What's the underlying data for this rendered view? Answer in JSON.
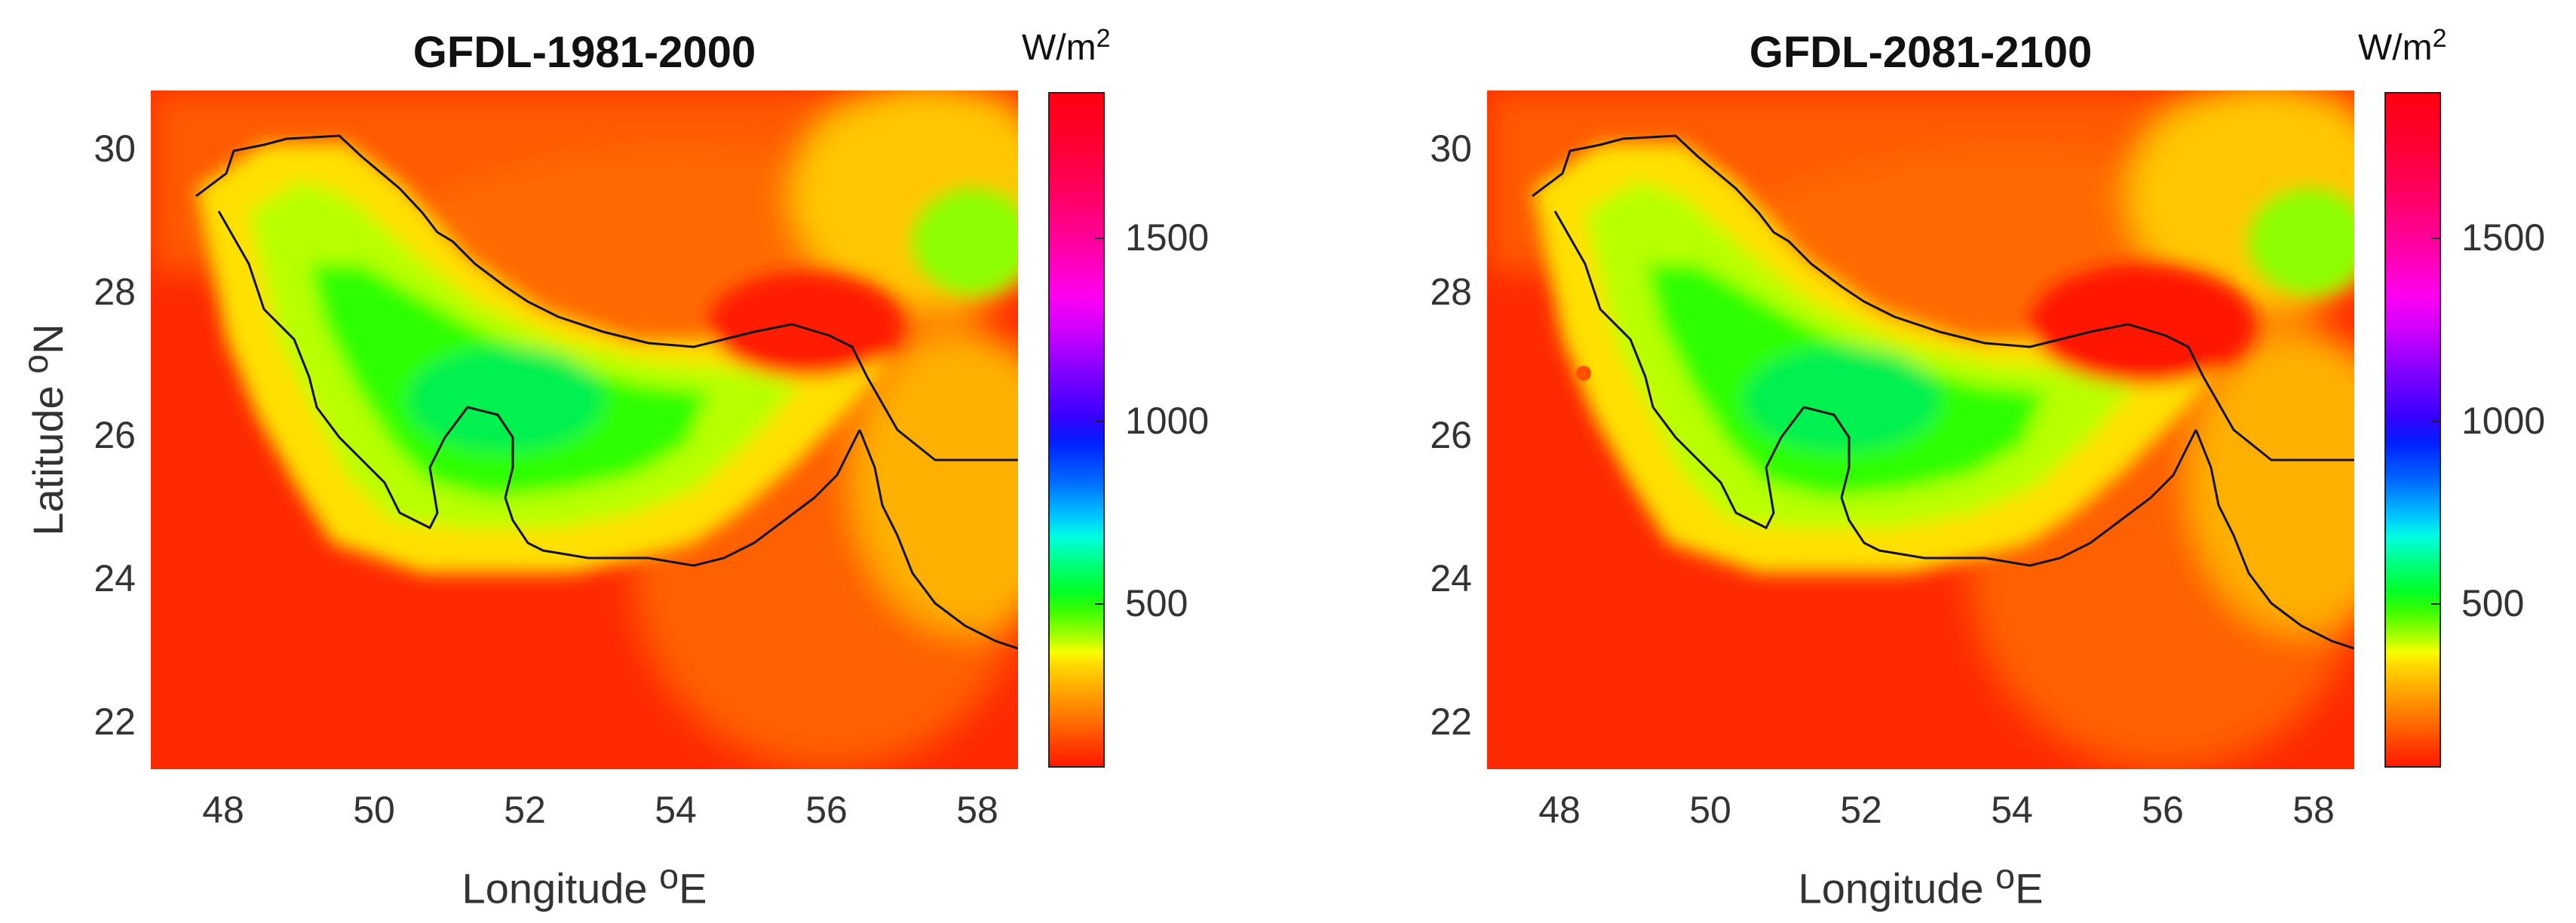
{
  "chart_data": [
    {
      "type": "heatmap",
      "title": "GFDL-1981-2000",
      "xlabel": "Longitude",
      "xlabel_sup": "o",
      "xlabel_unit": "E",
      "ylabel": "Latitude",
      "ylabel_sup": "o",
      "ylabel_unit": "N",
      "xlim": [
        47.1,
        58.5
      ],
      "ylim": [
        21.3,
        30.8
      ],
      "xticks": [
        "48",
        "50",
        "52",
        "54",
        "56",
        "58"
      ],
      "yticks": [
        "22",
        "24",
        "26",
        "28",
        "30"
      ],
      "colorbar": {
        "unit": "W/m",
        "unit_sup": "2",
        "range": [
          0,
          1900
        ],
        "ticks": [
          "500",
          "1000",
          "1500"
        ],
        "colormap": "hsv"
      },
      "values_description": "Low values (~100-200 W/m2, red) over Arabian Peninsula land and Oman; highest values (~600-700 W/m2, green) over Persian Gulf waters; yellow bands along Iranian coast and northeast"
    },
    {
      "type": "heatmap",
      "title": "GFDL-2081-2100",
      "xlabel": "Longitude",
      "xlabel_sup": "o",
      "xlabel_unit": "E",
      "ylabel": "",
      "xlim": [
        47.1,
        58.5
      ],
      "ylim": [
        21.3,
        30.8
      ],
      "xticks": [
        "48",
        "50",
        "52",
        "54",
        "56",
        "58"
      ],
      "yticks": [
        "22",
        "24",
        "26",
        "28",
        "30"
      ],
      "colorbar": {
        "unit": "W/m",
        "unit_sup": "2",
        "range": [
          0,
          1900
        ],
        "ticks": [
          "500",
          "1000",
          "1500"
        ],
        "colormap": "hsv"
      },
      "values_description": "Similar spatial pattern to 1981-2000 with green maximum over Persian Gulf and red over surrounding land"
    }
  ],
  "panels": [
    {
      "title": "GFDL-1981-2000",
      "xlabel": "Longitude",
      "xlabel_sup": "o",
      "xlabel_unit": "E",
      "ylabel": "Latitude",
      "ylabel_sup": "o",
      "ylabel_unit": "N",
      "xticks": [
        "48",
        "50",
        "52",
        "54",
        "56",
        "58"
      ],
      "yticks": [
        "22",
        "24",
        "26",
        "28",
        "30"
      ],
      "cb_unit": "W/m",
      "cb_unit_sup": "2",
      "cb_ticks": [
        "500",
        "1000",
        "1500"
      ]
    },
    {
      "title": "GFDL-2081-2100",
      "xlabel": "Longitude",
      "xlabel_sup": "o",
      "xlabel_unit": "E",
      "xticks": [
        "48",
        "50",
        "52",
        "54",
        "56",
        "58"
      ],
      "yticks": [
        "22",
        "24",
        "26",
        "28",
        "30"
      ],
      "cb_unit": "W/m",
      "cb_unit_sup": "2",
      "cb_ticks": [
        "500",
        "1000",
        "1500"
      ]
    }
  ],
  "colors": {
    "land_low": "#ff2a00",
    "land_mid": "#ff6a00",
    "transition": "#ffa800",
    "yellow": "#ffe000",
    "yellow_green": "#c8ff00",
    "green": "#2eff00",
    "coastline": "#111111"
  }
}
